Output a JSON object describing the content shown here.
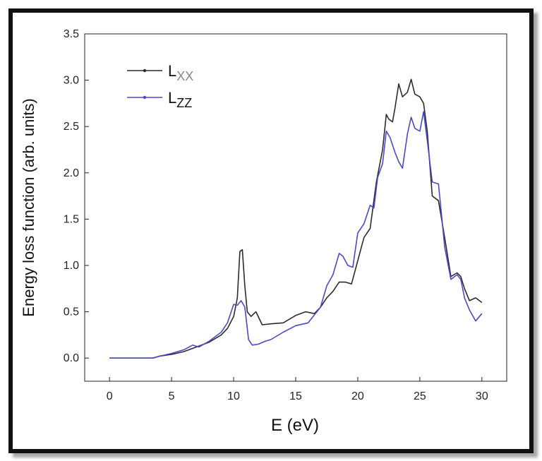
{
  "chart_data": {
    "type": "line",
    "title": "",
    "xlabel": "E (eV)",
    "ylabel": "Energy loss function (arb. units)",
    "xlim": [
      -2,
      32
    ],
    "ylim": [
      -0.25,
      3.5
    ],
    "xticks": [
      0,
      5,
      10,
      15,
      20,
      25,
      30
    ],
    "xtick_labels": [
      "0",
      "5",
      "10",
      "15",
      "20",
      "25",
      "30"
    ],
    "yticks": [
      0.0,
      0.5,
      1.0,
      1.5,
      2.0,
      2.5,
      3.0,
      3.5
    ],
    "ytick_labels": [
      "0.0",
      "0.5",
      "1.0",
      "1.5",
      "2.0",
      "2.5",
      "3.0",
      "3.5"
    ],
    "grid": false,
    "legend_position": "top-left",
    "series": [
      {
        "name": "L",
        "name_subscript": "XX",
        "color": "#2b2b2b",
        "x": [
          0,
          3.5,
          4,
          5,
          6,
          7,
          8,
          9,
          9.5,
          10,
          10.3,
          10.5,
          10.7,
          10.9,
          11.1,
          11.4,
          11.8,
          12.3,
          13,
          14,
          15,
          15.8,
          16.5,
          17,
          17.5,
          18,
          18.5,
          19,
          19.5,
          20,
          20.5,
          21,
          21.5,
          22,
          22.3,
          22.5,
          22.8,
          23,
          23.3,
          23.6,
          24,
          24.3,
          24.6,
          25,
          25.3,
          25.6,
          26,
          26.5,
          27,
          27.5,
          28,
          28.3,
          28.6,
          29,
          29.5,
          30
        ],
        "y": [
          0.0,
          0.0,
          0.02,
          0.04,
          0.07,
          0.12,
          0.17,
          0.25,
          0.32,
          0.45,
          0.65,
          1.15,
          1.17,
          0.78,
          0.5,
          0.45,
          0.5,
          0.36,
          0.37,
          0.38,
          0.46,
          0.5,
          0.48,
          0.55,
          0.65,
          0.72,
          0.82,
          0.82,
          0.8,
          1.05,
          1.3,
          1.4,
          1.9,
          2.25,
          2.63,
          2.58,
          2.55,
          2.7,
          2.96,
          2.82,
          2.87,
          3.01,
          2.85,
          2.82,
          2.75,
          2.45,
          1.75,
          1.7,
          1.3,
          0.88,
          0.92,
          0.88,
          0.75,
          0.62,
          0.65,
          0.6
        ]
      },
      {
        "name": "L",
        "name_subscript": "ZZ",
        "color": "#4a4ac8",
        "x": [
          0,
          3.5,
          4,
          5,
          6,
          6.7,
          7.2,
          8,
          9,
          9.5,
          10,
          10.3,
          10.6,
          10.9,
          11.2,
          11.5,
          12,
          12.5,
          13,
          14,
          15,
          16,
          17,
          17.5,
          18,
          18.5,
          18.8,
          19.2,
          19.6,
          20,
          20.5,
          21,
          21.3,
          21.6,
          22,
          22.3,
          22.6,
          23,
          23.3,
          23.6,
          24,
          24.3,
          24.6,
          25,
          25.3,
          25.6,
          26,
          26.5,
          27,
          27.5,
          28,
          28.3,
          28.6,
          29,
          29.5,
          30
        ],
        "y": [
          0.0,
          0.0,
          0.02,
          0.05,
          0.09,
          0.14,
          0.12,
          0.18,
          0.28,
          0.38,
          0.58,
          0.57,
          0.62,
          0.55,
          0.2,
          0.14,
          0.15,
          0.18,
          0.2,
          0.28,
          0.35,
          0.38,
          0.55,
          0.78,
          0.9,
          1.13,
          1.1,
          1.0,
          0.98,
          1.35,
          1.45,
          1.65,
          1.62,
          1.95,
          2.1,
          2.45,
          2.38,
          2.22,
          2.12,
          2.05,
          2.42,
          2.6,
          2.48,
          2.45,
          2.66,
          2.35,
          1.9,
          1.88,
          1.2,
          0.85,
          0.9,
          0.85,
          0.65,
          0.52,
          0.4,
          0.48
        ]
      }
    ]
  }
}
